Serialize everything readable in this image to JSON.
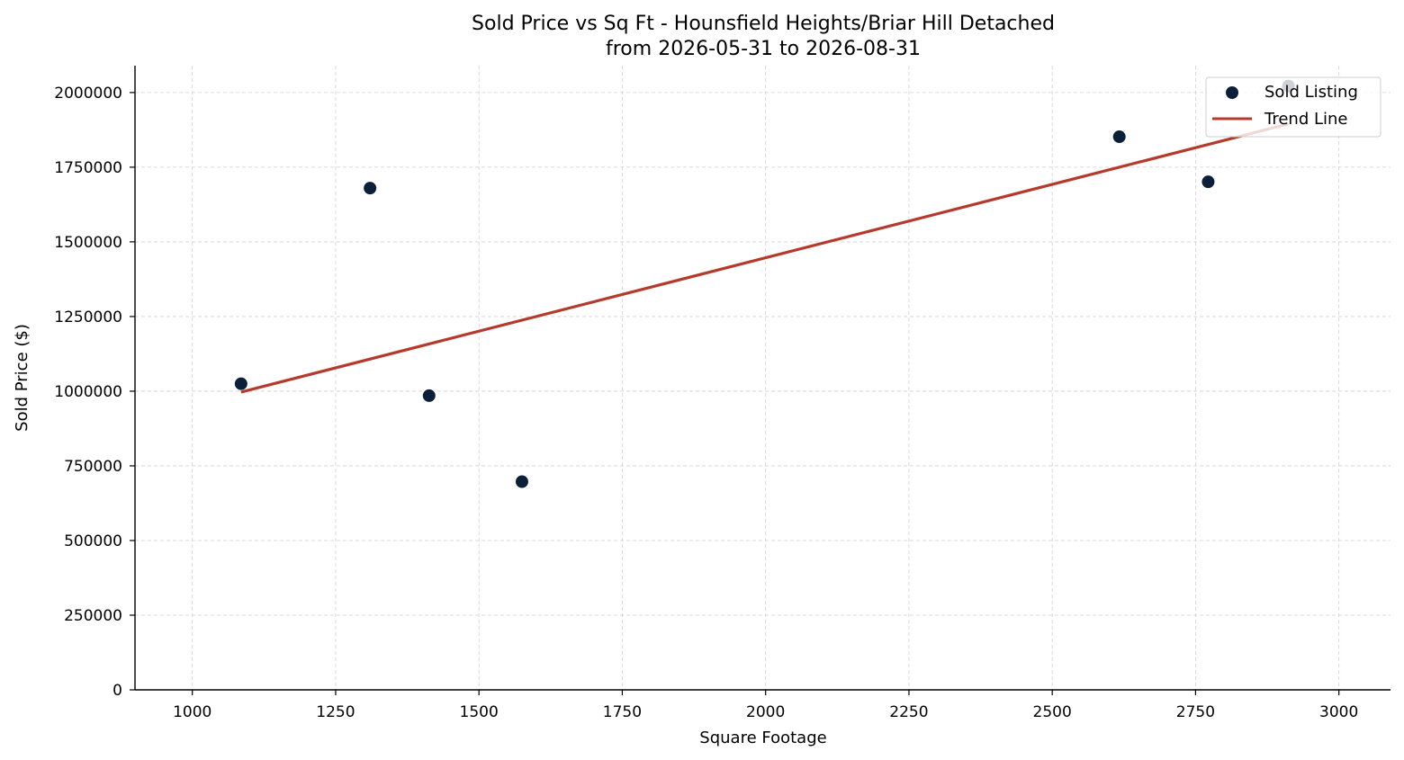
{
  "chart_data": {
    "type": "scatter",
    "title": "Sold Price vs Sq Ft - Hounsfield Heights/Briar Hill Detached",
    "subtitle": "from 2026-05-31 to 2026-08-31",
    "xlabel": "Square Footage",
    "ylabel": "Sold Price ($)",
    "xlim": [
      900,
      3090
    ],
    "ylim": [
      0,
      2090000
    ],
    "x_ticks": [
      1000,
      1250,
      1500,
      1750,
      2000,
      2250,
      2500,
      2750,
      3000
    ],
    "y_ticks": [
      0,
      250000,
      500000,
      750000,
      1000000,
      1250000,
      1500000,
      1750000,
      2000000
    ],
    "grid": true,
    "legend_position": "top-right",
    "series": [
      {
        "name": "Sold Listing",
        "type": "scatter",
        "color": "#0b1f3a",
        "points": [
          {
            "x": 1085,
            "y": 1025000
          },
          {
            "x": 1310,
            "y": 1680000
          },
          {
            "x": 1413,
            "y": 985000
          },
          {
            "x": 1575,
            "y": 697000
          },
          {
            "x": 2617,
            "y": 1852000
          },
          {
            "x": 2772,
            "y": 1701000
          },
          {
            "x": 2912,
            "y": 2022000
          }
        ]
      },
      {
        "name": "Trend Line",
        "type": "line",
        "color": "#b53a2c",
        "points": [
          {
            "x": 1085,
            "y": 997000
          },
          {
            "x": 2912,
            "y": 1895000
          }
        ]
      }
    ]
  }
}
